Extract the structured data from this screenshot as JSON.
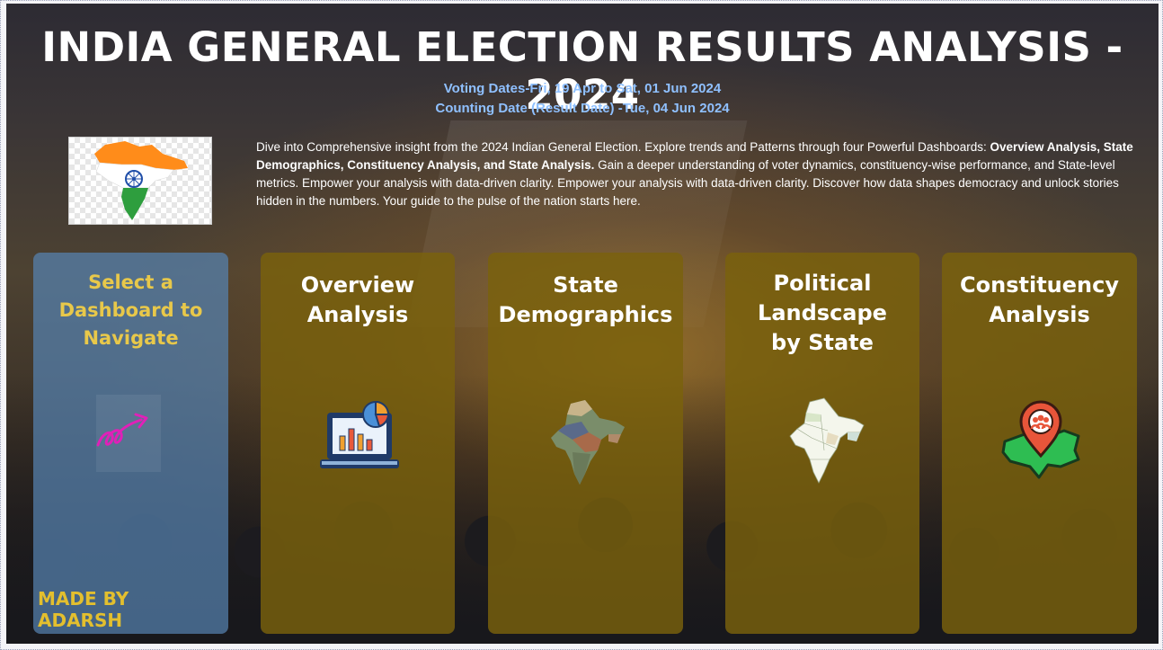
{
  "header": {
    "title": "INDIA GENERAL ELECTION RESULTS ANALYSIS - 2024",
    "voting_dates": "Voting Dates-Fri, 19 Apr to Sat, 01 Jun 2024",
    "counting_date": "Counting Date (Result Date) -Tue, 04 Jun 2024"
  },
  "intro": {
    "lead": "Dive into Comprehensive insight from the 2024 Indian General Election. Explore trends and Patterns through four Powerful Dashboards: ",
    "bold": "Overview Analysis, State Demographics, Constituency Analysis, and State Analysis.",
    "tail": " Gain a deeper understanding of voter dynamics, constituency-wise performance, and State-level metrics. Empower your analysis with data-driven clarity. Empower your analysis with data-driven clarity. Discover how data shapes democracy and unlock stories hidden in the numbers. Your guide to the pulse of the nation starts here."
  },
  "nav_panel": {
    "title": "Select a Dashboard to Navigate",
    "credit": "MADE BY ADARSH",
    "icon": "cursor-arrow-icon"
  },
  "cards": [
    {
      "label": "Overview Analysis",
      "icon": "laptop-chart-icon"
    },
    {
      "label": "State Demographics",
      "icon": "india-photo-map-icon"
    },
    {
      "label": "Political Landscape by State",
      "icon": "india-political-map-icon"
    },
    {
      "label": "Constituency Analysis",
      "icon": "map-pin-people-icon"
    }
  ],
  "colors": {
    "title": "#ffffff",
    "dates": "#8fc0ff",
    "card_gold": "#7a620c",
    "nav_blue": "#5682b0",
    "nav_text": "#e8c84a",
    "saffron": "#ff8c1a",
    "india_green": "#2e9e3e",
    "chakra_blue": "#1f4ea8"
  }
}
